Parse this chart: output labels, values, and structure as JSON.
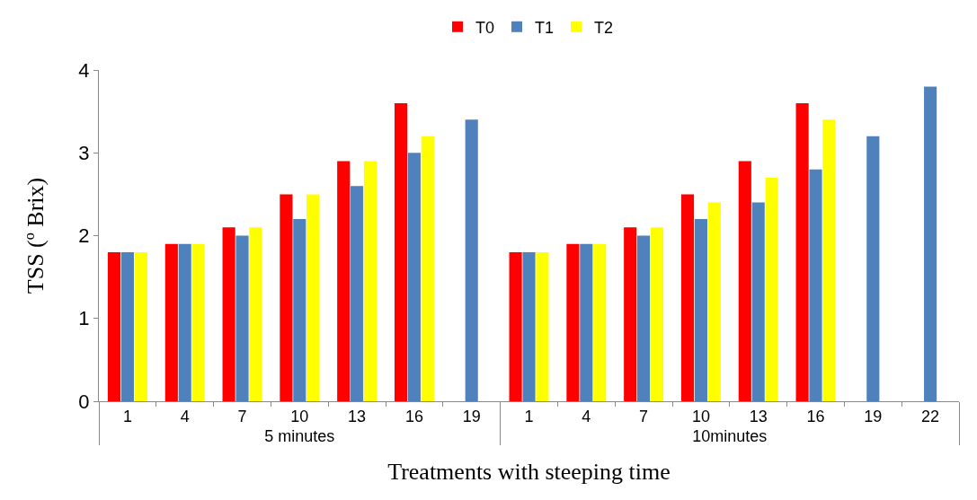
{
  "chart_data": {
    "type": "bar",
    "xlabel": "Treatments with steeping time",
    "ylabel": "TSS (º Brix)",
    "annotations": [
      "5 minutes",
      "10minutes"
    ],
    "categories": [
      "1",
      "4",
      "7",
      "10",
      "13",
      "16",
      "19",
      "1",
      "4",
      "7",
      "10",
      "13",
      "16",
      "19",
      "22"
    ],
    "series": [
      {
        "name": "T0",
        "color": "#ff0000",
        "values": [
          1.8,
          1.9,
          2.1,
          2.5,
          2.9,
          3.6,
          0,
          1.8,
          1.9,
          2.1,
          2.5,
          2.9,
          3.6,
          0,
          0
        ]
      },
      {
        "name": "T1",
        "color": "#4f81bd",
        "values": [
          1.8,
          1.9,
          2.0,
          2.2,
          2.6,
          3.0,
          3.4,
          1.8,
          1.9,
          2.0,
          2.2,
          2.4,
          2.8,
          3.2,
          3.8
        ]
      },
      {
        "name": "T2",
        "color": "#ffff00",
        "values": [
          1.8,
          1.9,
          2.1,
          2.5,
          2.9,
          3.2,
          0,
          1.8,
          1.9,
          2.1,
          2.4,
          2.7,
          3.4,
          0,
          0
        ]
      }
    ],
    "ylim": [
      0,
      4
    ],
    "yticks": [
      0,
      1,
      2,
      3,
      4
    ],
    "grid": false,
    "legend": "top"
  }
}
